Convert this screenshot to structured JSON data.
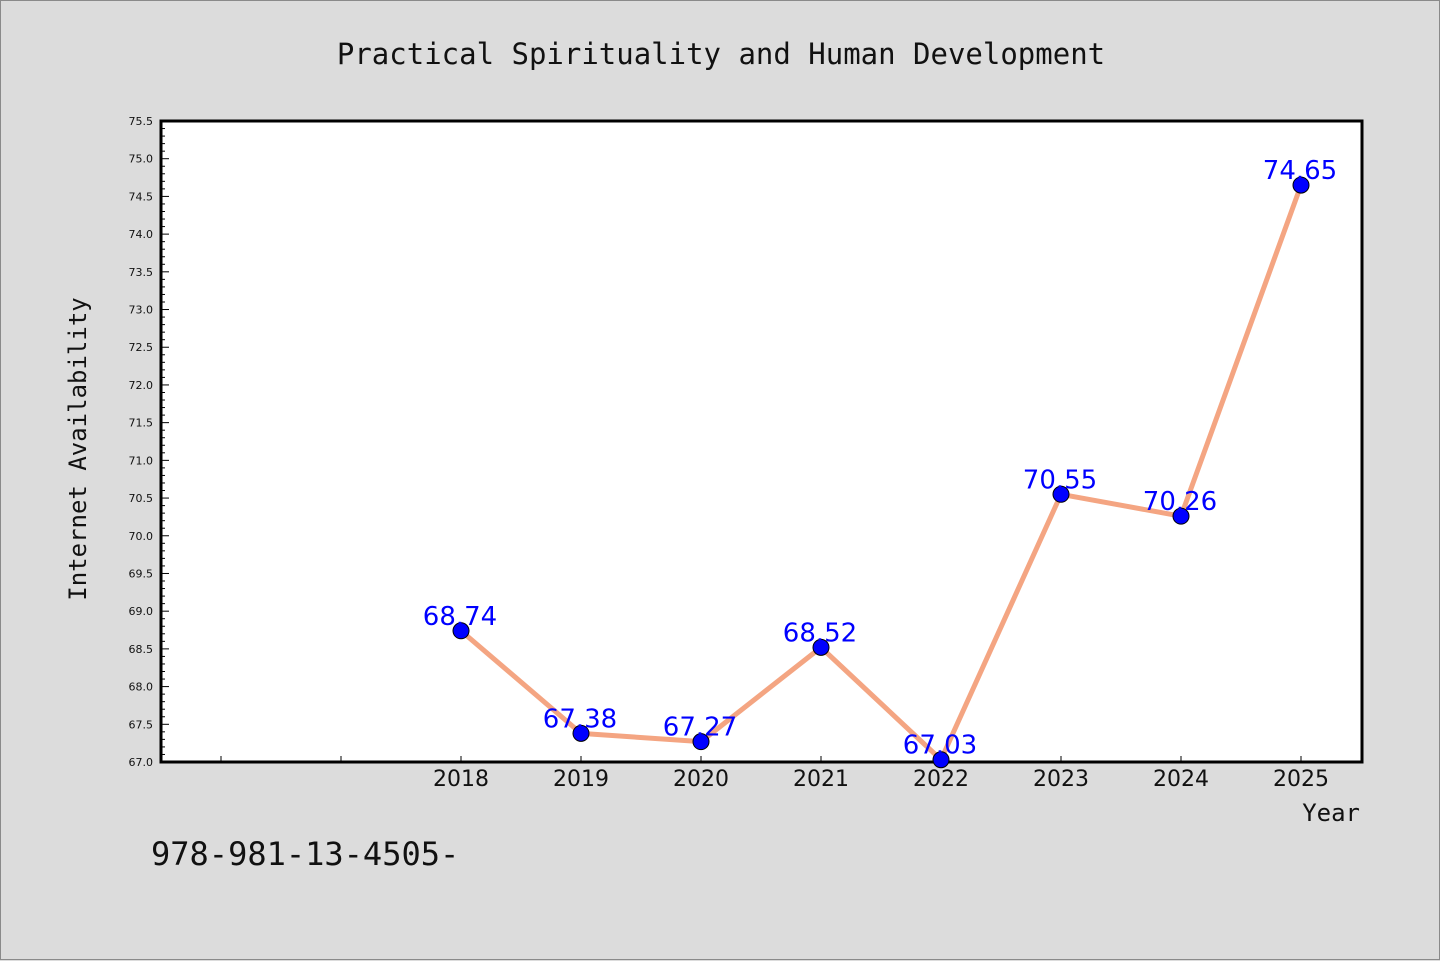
{
  "chart_data": {
    "type": "line",
    "title": "Practical Spirituality and Human Development",
    "xlabel": "Year",
    "ylabel": "Internet Availability",
    "x": [
      "2018",
      "2019",
      "2020",
      "2021",
      "2022",
      "2023",
      "2024",
      "2025"
    ],
    "series": [
      {
        "values": [
          68.74,
          67.38,
          67.27,
          68.52,
          67.03,
          70.55,
          70.26,
          74.65
        ],
        "labels": [
          "68.74",
          "67.38",
          "67.27",
          "68.52",
          "67.03",
          "70.55",
          "70.26",
          "74.65"
        ],
        "line_color": "#f4a582",
        "marker_color": "#0000ff"
      }
    ],
    "ylim": [
      67.0,
      75.5
    ],
    "yticks": [
      "67.0",
      "67.5",
      "68.0",
      "68.5",
      "69.0",
      "69.5",
      "70.0",
      "70.5",
      "71.0",
      "71.5",
      "72.0",
      "72.5",
      "73.0",
      "73.5",
      "74.0",
      "74.5",
      "75.0",
      "75.5"
    ],
    "grid": false,
    "legend": "none"
  },
  "footer_text": "978-981-13-4505-",
  "colors": {
    "background": "#dcdcdc",
    "plot_background": "#ffffff",
    "axis": "#000000",
    "label_color": "#0000ff"
  }
}
